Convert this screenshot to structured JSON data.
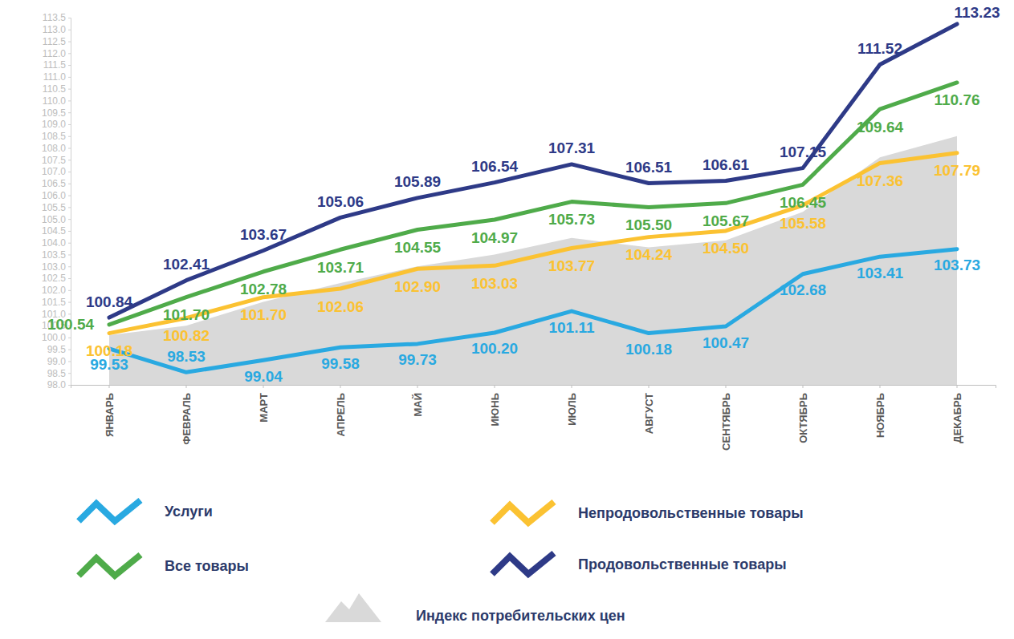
{
  "chart_data": {
    "type": "line",
    "categories": [
      "ЯНВАРЬ",
      "ФЕВРАЛЬ",
      "МАРТ",
      "АПРЕЛЬ",
      "МАЙ",
      "ИЮНЬ",
      "ИЮЛЬ",
      "АВГУСТ",
      "СЕНТЯБРЬ",
      "ОКТЯБРЬ",
      "НОЯБРЬ",
      "ДЕКАБРЬ"
    ],
    "series": [
      {
        "name": "Услуги",
        "color": "#29a9e1",
        "type": "line",
        "values": [
          99.53,
          98.53,
          99.04,
          99.58,
          99.73,
          100.2,
          101.11,
          100.18,
          100.47,
          102.68,
          103.41,
          103.73
        ]
      },
      {
        "name": "Непродовольственные товары",
        "color": "#fbc232",
        "type": "line",
        "values": [
          100.18,
          100.82,
          101.7,
          102.06,
          102.9,
          103.03,
          103.77,
          104.24,
          104.5,
          105.58,
          107.36,
          107.79
        ]
      },
      {
        "name": "Все товары",
        "color": "#4fab4a",
        "type": "line",
        "values": [
          100.54,
          101.7,
          102.78,
          103.71,
          104.55,
          104.97,
          105.73,
          105.5,
          105.67,
          106.45,
          109.64,
          110.76
        ]
      },
      {
        "name": "Продовольственные товары",
        "color": "#2e3a87",
        "type": "line",
        "values": [
          100.84,
          102.41,
          103.67,
          105.06,
          105.89,
          106.54,
          107.31,
          106.51,
          106.61,
          107.15,
          111.52,
          113.23
        ]
      },
      {
        "name": "Индекс потребительских цен",
        "color": "#d9d9d9",
        "type": "area",
        "data_labels": false,
        "values": [
          100.1,
          100.5,
          101.5,
          102.3,
          103.0,
          103.5,
          104.2,
          103.8,
          104.1,
          105.3,
          107.6,
          108.5
        ]
      }
    ],
    "ylim": [
      98,
      113.5
    ],
    "yticks": [
      {
        "value": 98,
        "label": "98.0"
      },
      98.5,
      {
        "value": 99,
        "label": "99.0"
      },
      99.5,
      {
        "value": 100,
        "label": "100.0"
      },
      100.5,
      {
        "value": 101,
        "label": "101.0"
      },
      101.5,
      {
        "value": 102,
        "label": "102.0"
      },
      102.5,
      {
        "value": 103,
        "label": "103.0"
      },
      103.5,
      {
        "value": 104,
        "label": "104.0"
      },
      104.5,
      {
        "value": 105,
        "label": "105.0"
      },
      105.5,
      {
        "value": 106,
        "label": "106.0"
      },
      106.5,
      {
        "value": 107,
        "label": "107.0"
      },
      107.5,
      {
        "value": 108,
        "label": "108.0"
      },
      108.5,
      {
        "value": 109,
        "label": "109.0"
      },
      109.5,
      {
        "value": 110,
        "label": "110.0"
      },
      110.5,
      {
        "value": 111,
        "label": "111.0"
      },
      111.5,
      {
        "value": 112,
        "label": "112.0"
      },
      112.5,
      {
        "value": 113,
        "label": "113.0"
      },
      113.5
    ],
    "grid": false,
    "data_labels": true,
    "legend": "bottom"
  }
}
